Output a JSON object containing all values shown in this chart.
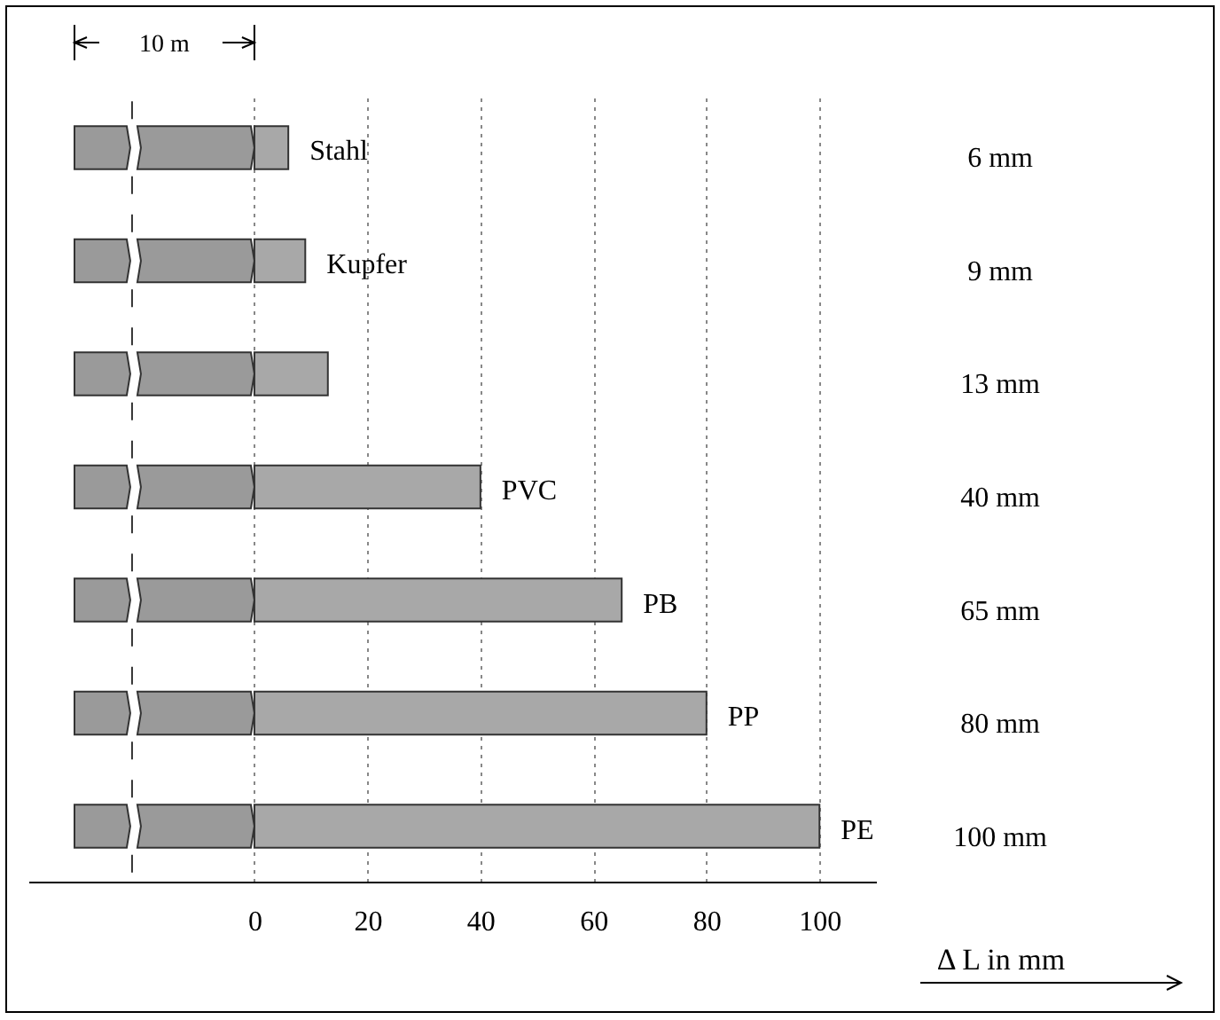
{
  "chart_data": {
    "type": "bar",
    "orientation": "horizontal",
    "categories": [
      "Stahl",
      "Kupfer",
      null,
      "PVC",
      "PB",
      "PP",
      "PE"
    ],
    "values": [
      6,
      9,
      13,
      40,
      65,
      80,
      100
    ],
    "value_labels": [
      "6 mm",
      "9 mm",
      "13 mm",
      "40 mm",
      "65 mm",
      "80 mm",
      "100 mm"
    ],
    "color": "#a8a8a8",
    "xlim": [
      -40,
      110
    ],
    "xticks": [
      0,
      20,
      40,
      60,
      80,
      100
    ],
    "xlabel": "Δ L in mm",
    "grid": "x",
    "tick_labels": "x",
    "annotations": [
      "10 m"
    ]
  }
}
